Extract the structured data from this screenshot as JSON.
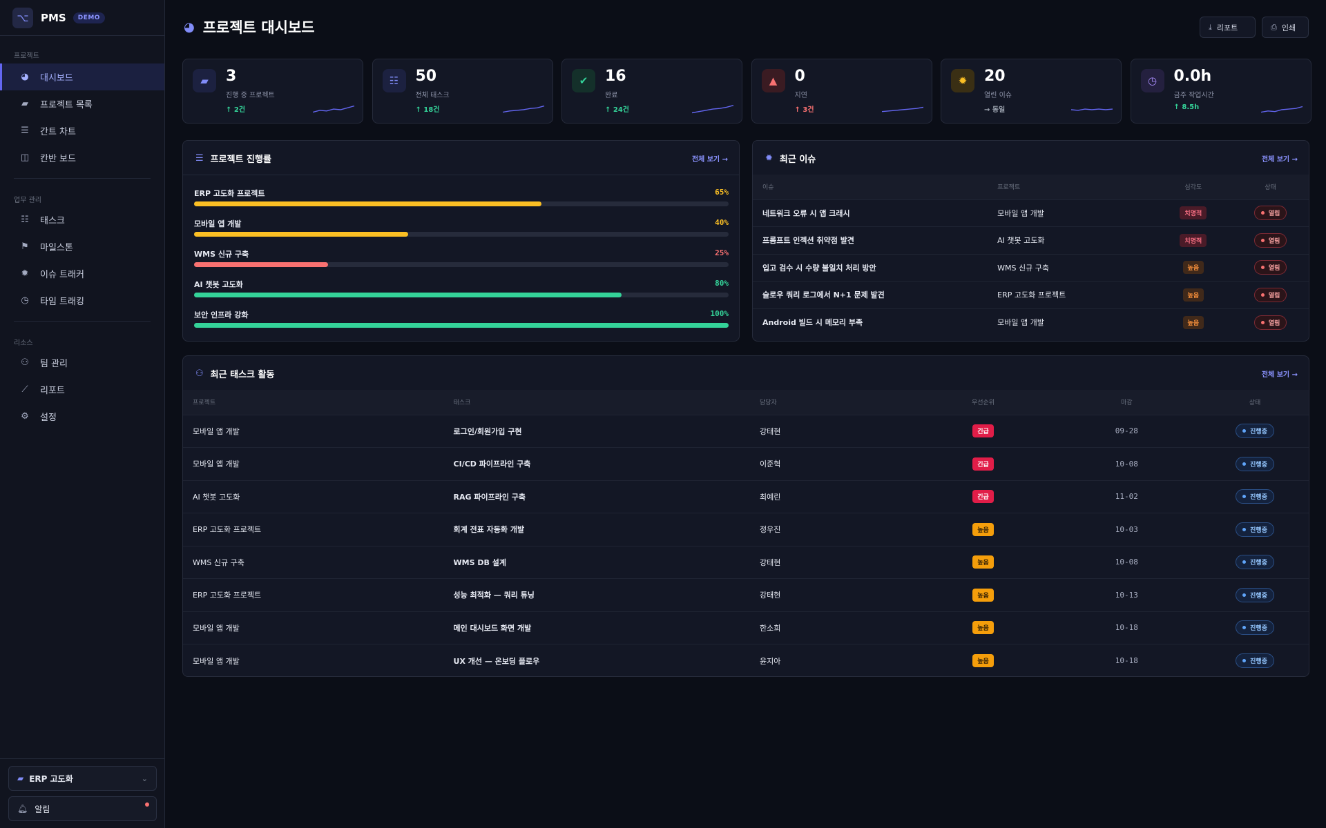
{
  "app": {
    "name": "PMS",
    "badge": "DEMO"
  },
  "sidebar": {
    "sections": [
      {
        "label": "프로젝트",
        "items": [
          {
            "label": "대시보드",
            "icon": "pie-chart-icon",
            "active": true
          },
          {
            "label": "프로젝트 목록",
            "icon": "folder-icon"
          },
          {
            "label": "간트 차트",
            "icon": "gantt-icon"
          },
          {
            "label": "칸반 보드",
            "icon": "kanban-icon"
          }
        ]
      },
      {
        "label": "업무 관리",
        "items": [
          {
            "label": "태스크",
            "icon": "list-icon"
          },
          {
            "label": "마일스톤",
            "icon": "flag-icon"
          },
          {
            "label": "이슈 트래커",
            "icon": "bug-icon"
          },
          {
            "label": "타임 트래킹",
            "icon": "stopwatch-icon"
          }
        ]
      },
      {
        "label": "리소스",
        "items": [
          {
            "label": "팀 관리",
            "icon": "team-icon"
          },
          {
            "label": "리포트",
            "icon": "line-chart-icon"
          },
          {
            "label": "설정",
            "icon": "gear-icon"
          }
        ]
      }
    ],
    "project_select": "ERP 고도화",
    "notifications": "알림"
  },
  "header": {
    "title": "프로젝트 대시보드",
    "report_button": "리포트",
    "print_button": "인쇄"
  },
  "stats": [
    {
      "value": "3",
      "label": "진행 중 프로젝트",
      "delta": "↑ 2건",
      "trend": "up",
      "icon": "folder-icon",
      "color": "#818cf8",
      "bg": "#1c2140"
    },
    {
      "value": "50",
      "label": "전체 태스크",
      "delta": "↑ 18건",
      "trend": "up",
      "icon": "list-icon",
      "color": "#818cf8",
      "bg": "#1c2140"
    },
    {
      "value": "16",
      "label": "완료",
      "delta": "↑ 24건",
      "trend": "up",
      "icon": "check-circle-icon",
      "color": "#34d399",
      "bg": "#14302a"
    },
    {
      "value": "0",
      "label": "지연",
      "delta": "↑ 3건",
      "trend": "down",
      "icon": "warning-icon",
      "color": "#f87171",
      "bg": "#3a1b22"
    },
    {
      "value": "20",
      "label": "열린 이슈",
      "delta": "→ 동일",
      "trend": "flat",
      "icon": "bug-icon",
      "color": "#fbbf24",
      "bg": "#3a2f14"
    },
    {
      "value": "0.0h",
      "label": "금주 작업시간",
      "delta": "↑ 8.5h",
      "trend": "up",
      "icon": "stopwatch-icon",
      "color": "#a78bfa",
      "bg": "#24203f"
    }
  ],
  "progress": {
    "title": "프로젝트 진행률",
    "link": "전체 보기 →",
    "items": [
      {
        "name": "ERP 고도화 프로젝트",
        "percent": 65,
        "label": "65%",
        "color": "#fbbf24"
      },
      {
        "name": "모바일 앱 개발",
        "percent": 40,
        "label": "40%",
        "color": "#fbbf24"
      },
      {
        "name": "WMS 신규 구축",
        "percent": 25,
        "label": "25%",
        "color": "#f87171"
      },
      {
        "name": "AI 챗봇 고도화",
        "percent": 80,
        "label": "80%",
        "color": "#34d399"
      },
      {
        "name": "보안 인프라 강화",
        "percent": 100,
        "label": "100%",
        "color": "#34d399"
      }
    ]
  },
  "issues": {
    "title": "최근 이슈",
    "link": "전체 보기 →",
    "columns": [
      "이슈",
      "프로젝트",
      "심각도",
      "상태"
    ],
    "rows": [
      {
        "issue": "네트워크 오류 시 앱 크래시",
        "project": "모바일 앱 개발",
        "severity": "치명적",
        "sev_type": "critical",
        "status": "열림"
      },
      {
        "issue": "프롬프트 인젝션 취약점 발견",
        "project": "AI 챗봇 고도화",
        "severity": "치명적",
        "sev_type": "critical",
        "status": "열림"
      },
      {
        "issue": "입고 검수 시 수량 불일치 처리 방안",
        "project": "WMS 신규 구축",
        "severity": "높음",
        "sev_type": "high",
        "status": "열림"
      },
      {
        "issue": "슬로우 쿼리 로그에서 N+1 문제 발견",
        "project": "ERP 고도화 프로젝트",
        "severity": "높음",
        "sev_type": "high",
        "status": "열림"
      },
      {
        "issue": "Android 빌드 시 메모리 부족",
        "project": "모바일 앱 개발",
        "severity": "높음",
        "sev_type": "high",
        "status": "열림"
      }
    ]
  },
  "tasks": {
    "title": "최근 태스크 활동",
    "link": "전체 보기 →",
    "columns": [
      "프로젝트",
      "태스크",
      "담당자",
      "우선순위",
      "마감",
      "상태"
    ],
    "rows": [
      {
        "project": "모바일 앱 개발",
        "task": "로그인/회원가입 구현",
        "assignee": "강태현",
        "priority": "긴급",
        "pri_type": "urgent",
        "due": "09-28",
        "status": "진행중"
      },
      {
        "project": "모바일 앱 개발",
        "task": "CI/CD 파이프라인 구축",
        "assignee": "이준혁",
        "priority": "긴급",
        "pri_type": "urgent",
        "due": "10-08",
        "status": "진행중"
      },
      {
        "project": "AI 챗봇 고도화",
        "task": "RAG 파이프라인 구축",
        "assignee": "최예린",
        "priority": "긴급",
        "pri_type": "urgent",
        "due": "11-02",
        "status": "진행중"
      },
      {
        "project": "ERP 고도화 프로젝트",
        "task": "회계 전표 자동화 개발",
        "assignee": "정우진",
        "priority": "높음",
        "pri_type": "high",
        "due": "10-03",
        "status": "진행중"
      },
      {
        "project": "WMS 신규 구축",
        "task": "WMS DB 설계",
        "assignee": "강태현",
        "priority": "높음",
        "pri_type": "high",
        "due": "10-08",
        "status": "진행중"
      },
      {
        "project": "ERP 고도화 프로젝트",
        "task": "성능 최적화 — 쿼리 튜닝",
        "assignee": "강태현",
        "priority": "높음",
        "pri_type": "high",
        "due": "10-13",
        "status": "진행중"
      },
      {
        "project": "모바일 앱 개발",
        "task": "메인 대시보드 화면 개발",
        "assignee": "한소희",
        "priority": "높음",
        "pri_type": "high",
        "due": "10-18",
        "status": "진행중"
      },
      {
        "project": "모바일 앱 개발",
        "task": "UX 개선 — 온보딩 플로우",
        "assignee": "윤지아",
        "priority": "높음",
        "pri_type": "high",
        "due": "10-18",
        "status": "진행중"
      }
    ]
  }
}
